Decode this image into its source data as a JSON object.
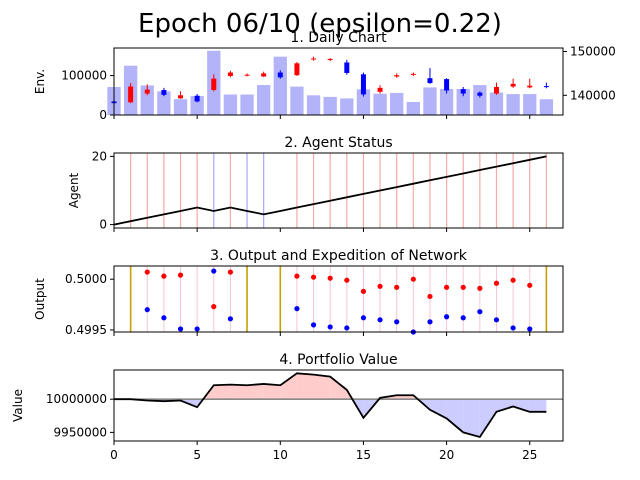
{
  "suptitle": "Epoch 06/10 (epsilon=0.22)",
  "chart_data": [
    {
      "type": "bar+candlestick",
      "title": "1. Daily Chart",
      "ylabel": "Env.",
      "xlim": [
        0,
        27
      ],
      "ylim_volume": [
        0,
        170000
      ],
      "ylim_price": [
        135500,
        150800
      ],
      "volume_yticks": [
        0,
        100000
      ],
      "price_yticks": [
        140000,
        150000
      ],
      "volume": [
        71000,
        125000,
        75000,
        60000,
        40000,
        48000,
        163000,
        52000,
        52000,
        76000,
        148000,
        72000,
        50000,
        46000,
        42000,
        65000,
        54000,
        56000,
        33000,
        70000,
        66000,
        66000,
        76000,
        57000,
        53000,
        53000,
        40000
      ],
      "candles": [
        {
          "x": 0,
          "open": 138600,
          "close": 138200,
          "high": 138700,
          "low": 138100
        },
        {
          "x": 1,
          "open": 138400,
          "close": 142000,
          "high": 142800,
          "low": 138200
        },
        {
          "x": 2,
          "open": 140400,
          "close": 141300,
          "high": 142500,
          "low": 140000
        },
        {
          "x": 3,
          "open": 141200,
          "close": 140100,
          "high": 141700,
          "low": 139800
        },
        {
          "x": 4,
          "open": 139300,
          "close": 140000,
          "high": 140900,
          "low": 139200
        },
        {
          "x": 5,
          "open": 139900,
          "close": 138600,
          "high": 140300,
          "low": 138400
        },
        {
          "x": 6,
          "open": 141200,
          "close": 143800,
          "high": 144800,
          "low": 140900
        },
        {
          "x": 7,
          "open": 144400,
          "close": 145200,
          "high": 145600,
          "low": 144100
        },
        {
          "x": 8,
          "open": 144700,
          "close": 144700,
          "high": 145000,
          "low": 144300
        },
        {
          "x": 9,
          "open": 144300,
          "close": 145000,
          "high": 145400,
          "low": 144200
        },
        {
          "x": 10,
          "open": 145200,
          "close": 144100,
          "high": 145700,
          "low": 143800
        },
        {
          "x": 11,
          "open": 144600,
          "close": 147300,
          "high": 147600,
          "low": 144400
        },
        {
          "x": 12,
          "open": 148300,
          "close": 148400,
          "high": 148800,
          "low": 147900
        },
        {
          "x": 13,
          "open": 148200,
          "close": 148300,
          "high": 148500,
          "low": 147800
        },
        {
          "x": 14,
          "open": 147500,
          "close": 145100,
          "high": 148100,
          "low": 144700
        },
        {
          "x": 15,
          "open": 144800,
          "close": 140200,
          "high": 145200,
          "low": 139700
        },
        {
          "x": 16,
          "open": 140800,
          "close": 141700,
          "high": 142300,
          "low": 140400
        },
        {
          "x": 17,
          "open": 144300,
          "close": 144600,
          "high": 145000,
          "low": 144000
        },
        {
          "x": 18,
          "open": 144700,
          "close": 144900,
          "high": 145200,
          "low": 144400
        },
        {
          "x": 19,
          "open": 143900,
          "close": 142800,
          "high": 146200,
          "low": 142600
        },
        {
          "x": 20,
          "open": 143700,
          "close": 141100,
          "high": 143900,
          "low": 140400
        },
        {
          "x": 21,
          "open": 141400,
          "close": 140400,
          "high": 141900,
          "low": 139800
        },
        {
          "x": 22,
          "open": 140600,
          "close": 139900,
          "high": 140900,
          "low": 139500
        },
        {
          "x": 23,
          "open": 140400,
          "close": 141900,
          "high": 142900,
          "low": 140100
        },
        {
          "x": 24,
          "open": 142000,
          "close": 142600,
          "high": 143800,
          "low": 141700
        },
        {
          "x": 25,
          "open": 141800,
          "close": 142200,
          "high": 143800,
          "low": 141600
        },
        {
          "x": 26,
          "open": 142100,
          "close": 142000,
          "high": 142900,
          "low": 141600
        }
      ]
    },
    {
      "type": "line",
      "title": "2. Agent Status",
      "ylabel": "Agent",
      "xlim": [
        0,
        27
      ],
      "ylim": [
        -1,
        21
      ],
      "yticks": [
        0,
        20
      ],
      "x": [
        0,
        1,
        2,
        3,
        4,
        5,
        6,
        7,
        8,
        9,
        10,
        11,
        12,
        13,
        14,
        15,
        16,
        17,
        18,
        19,
        20,
        21,
        22,
        23,
        24,
        25,
        26
      ],
      "values": [
        0,
        1,
        2,
        3,
        4,
        5,
        4,
        5,
        4,
        3,
        4,
        5,
        6,
        7,
        8,
        9,
        10,
        11,
        12,
        13,
        14,
        15,
        16,
        17,
        18,
        19,
        20
      ],
      "vlines": [
        {
          "x": 1,
          "kind": "buy"
        },
        {
          "x": 2,
          "kind": "buy"
        },
        {
          "x": 3,
          "kind": "buy"
        },
        {
          "x": 4,
          "kind": "buy"
        },
        {
          "x": 5,
          "kind": "buy"
        },
        {
          "x": 6,
          "kind": "sell"
        },
        {
          "x": 7,
          "kind": "buy"
        },
        {
          "x": 8,
          "kind": "sell"
        },
        {
          "x": 9,
          "kind": "sell"
        },
        {
          "x": 11,
          "kind": "buy"
        },
        {
          "x": 12,
          "kind": "buy"
        },
        {
          "x": 13,
          "kind": "buy"
        },
        {
          "x": 14,
          "kind": "buy"
        },
        {
          "x": 15,
          "kind": "buy"
        },
        {
          "x": 16,
          "kind": "buy"
        },
        {
          "x": 17,
          "kind": "buy"
        },
        {
          "x": 18,
          "kind": "buy"
        },
        {
          "x": 19,
          "kind": "buy"
        },
        {
          "x": 20,
          "kind": "buy"
        },
        {
          "x": 21,
          "kind": "buy"
        },
        {
          "x": 22,
          "kind": "buy"
        },
        {
          "x": 23,
          "kind": "buy"
        },
        {
          "x": 24,
          "kind": "buy"
        },
        {
          "x": 25,
          "kind": "buy"
        },
        {
          "x": 26,
          "kind": "buy"
        }
      ]
    },
    {
      "type": "scatter",
      "title": "3. Output and Expedition of Network",
      "ylabel": "Output",
      "xlim": [
        0,
        27
      ],
      "ylim": [
        0.49948,
        0.50013
      ],
      "yticks": [
        0.4995,
        0.5
      ],
      "ytick_labels": [
        "0.4995",
        "0.5000"
      ],
      "exploration_x": [
        1,
        8,
        10,
        26
      ],
      "buy_points": [
        [
          2,
          0.50007
        ],
        [
          3,
          0.50003
        ],
        [
          4,
          0.50004
        ],
        [
          6,
          0.49973
        ],
        [
          7,
          0.50007
        ],
        [
          11,
          0.50003
        ],
        [
          12,
          0.50002
        ],
        [
          13,
          0.50001
        ],
        [
          14,
          0.49999
        ],
        [
          15,
          0.49988
        ],
        [
          16,
          0.49993
        ],
        [
          17,
          0.49992
        ],
        [
          18,
          0.5
        ],
        [
          19,
          0.49983
        ],
        [
          20,
          0.49992
        ],
        [
          21,
          0.49992
        ],
        [
          22,
          0.49991
        ],
        [
          23,
          0.49996
        ],
        [
          24,
          0.49999
        ],
        [
          25,
          0.49994
        ]
      ],
      "sell_points": [
        [
          2,
          0.4997
        ],
        [
          3,
          0.49962
        ],
        [
          4,
          0.49951
        ],
        [
          5,
          0.49951
        ],
        [
          6,
          0.50008
        ],
        [
          7,
          0.49961
        ],
        [
          11,
          0.49971
        ],
        [
          12,
          0.49955
        ],
        [
          13,
          0.49953
        ],
        [
          14,
          0.49952
        ],
        [
          15,
          0.49962
        ],
        [
          16,
          0.4996
        ],
        [
          17,
          0.49958
        ],
        [
          18,
          0.49948
        ],
        [
          19,
          0.49958
        ],
        [
          20,
          0.49963
        ],
        [
          21,
          0.49962
        ],
        [
          22,
          0.49968
        ],
        [
          23,
          0.4996
        ],
        [
          24,
          0.49952
        ],
        [
          25,
          0.49951
        ]
      ],
      "vlines_x": [
        2,
        3,
        4,
        5,
        6,
        7,
        11,
        12,
        13,
        14,
        15,
        16,
        17,
        18,
        19,
        20,
        21,
        22,
        23,
        24,
        25
      ]
    },
    {
      "type": "line",
      "title": "4. Portfolio Value",
      "ylabel": "Value",
      "xlim": [
        0,
        27
      ],
      "ylim": [
        9937000,
        10044000
      ],
      "yticks": [
        9950000,
        10000000
      ],
      "baseline": 10000000,
      "xticks": [
        0,
        5,
        10,
        15,
        20,
        25
      ],
      "x": [
        0,
        1,
        2,
        3,
        4,
        5,
        6,
        7,
        8,
        9,
        10,
        11,
        12,
        13,
        14,
        15,
        16,
        17,
        18,
        19,
        20,
        21,
        22,
        23,
        24,
        25,
        26
      ],
      "values": [
        10000000,
        10000000,
        9998000,
        9997000,
        9998000,
        9988000,
        10021000,
        10022000,
        10021000,
        10023000,
        10021000,
        10039000,
        10037000,
        10034000,
        10014000,
        9972000,
        10002000,
        10006000,
        10006000,
        9984000,
        9971000,
        9950000,
        9943000,
        9981000,
        9989000,
        9981000,
        9981000
      ]
    }
  ],
  "colors": {
    "volume": "#b3b3fa",
    "up": "#ff0000",
    "down": "#0000ff",
    "buy_line": "#f5a9a9",
    "sell_line": "#a9a9f5",
    "exploration": "#c8a000",
    "gain_fill": "#ffcccc",
    "loss_fill": "#ccccff",
    "baseline": "#888888"
  }
}
